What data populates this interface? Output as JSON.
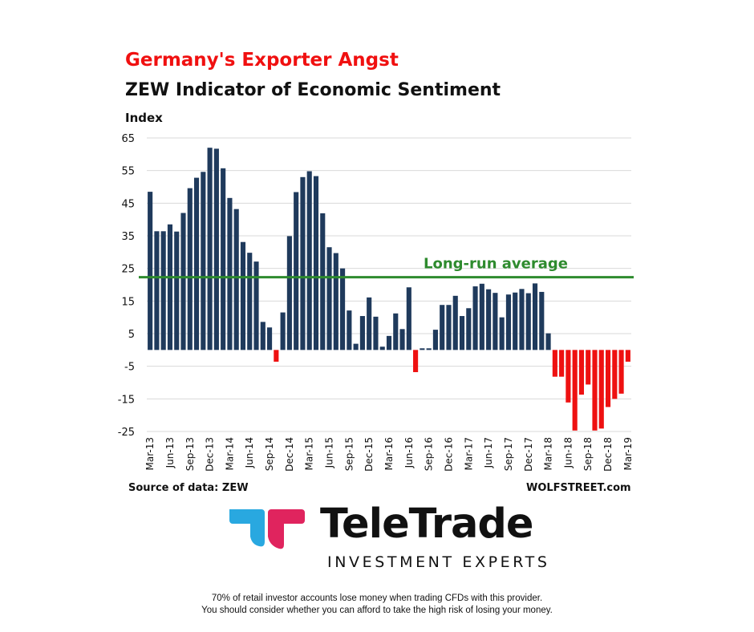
{
  "header": {
    "title": "Germany's Exporter Angst",
    "subtitle": "ZEW Indicator of Economic Sentiment",
    "ylabel": "Index"
  },
  "chart_data": {
    "type": "bar",
    "title": "Germany's Exporter Angst",
    "subtitle": "ZEW Indicator of Economic Sentiment",
    "ylabel": "Index",
    "xlabel": "",
    "ylim": [
      -25,
      65
    ],
    "yticks": [
      65,
      55,
      45,
      35,
      25,
      15,
      5,
      -5,
      -15,
      -25
    ],
    "grid": true,
    "categories": [
      "Mar-13",
      "Apr-13",
      "May-13",
      "Jun-13",
      "Jul-13",
      "Aug-13",
      "Sep-13",
      "Oct-13",
      "Nov-13",
      "Dec-13",
      "Jan-14",
      "Feb-14",
      "Mar-14",
      "Apr-14",
      "May-14",
      "Jun-14",
      "Jul-14",
      "Aug-14",
      "Sep-14",
      "Oct-14",
      "Nov-14",
      "Dec-14",
      "Jan-15",
      "Feb-15",
      "Mar-15",
      "Apr-15",
      "May-15",
      "Jun-15",
      "Jul-15",
      "Aug-15",
      "Sep-15",
      "Oct-15",
      "Nov-15",
      "Dec-15",
      "Jan-16",
      "Feb-16",
      "Mar-16",
      "Apr-16",
      "May-16",
      "Jun-16",
      "Jul-16",
      "Aug-16",
      "Sep-16",
      "Oct-16",
      "Nov-16",
      "Dec-16",
      "Jan-17",
      "Feb-17",
      "Mar-17",
      "Apr-17",
      "May-17",
      "Jun-17",
      "Jul-17",
      "Aug-17",
      "Sep-17",
      "Oct-17",
      "Nov-17",
      "Dec-17",
      "Jan-18",
      "Feb-18",
      "Mar-18",
      "Apr-18",
      "May-18",
      "Jun-18",
      "Jul-18",
      "Aug-18",
      "Sep-18",
      "Oct-18",
      "Nov-18",
      "Dec-18",
      "Jan-19",
      "Feb-19",
      "Mar-19"
    ],
    "values": [
      48.5,
      36.4,
      36.4,
      38.5,
      36.3,
      42.0,
      49.6,
      52.8,
      54.6,
      62.0,
      61.7,
      55.7,
      46.6,
      43.2,
      33.1,
      29.8,
      27.1,
      8.6,
      6.9,
      -3.6,
      11.5,
      34.9,
      48.4,
      53.0,
      54.8,
      53.3,
      41.9,
      31.5,
      29.7,
      25.0,
      12.1,
      1.9,
      10.4,
      16.1,
      10.2,
      1.0,
      4.3,
      11.2,
      6.4,
      19.2,
      -6.8,
      0.5,
      0.5,
      6.2,
      13.8,
      13.8,
      16.6,
      10.4,
      12.8,
      19.5,
      20.3,
      18.6,
      17.5,
      10.0,
      17.0,
      17.6,
      18.7,
      17.4,
      20.4,
      17.8,
      5.1,
      -8.2,
      -8.2,
      -16.1,
      -24.7,
      -13.7,
      -10.6,
      -24.7,
      -24.1,
      -17.5,
      -15.0,
      -13.4,
      -3.6
    ],
    "xtick_labels": [
      "Mar-13",
      "Jun-13",
      "Sep-13",
      "Dec-13",
      "Mar-14",
      "Jun-14",
      "Sep-14",
      "Dec-14",
      "Mar-15",
      "Jun-15",
      "Sep-15",
      "Dec-15",
      "Mar-16",
      "Jun-16",
      "Sep-16",
      "Dec-16",
      "Mar-17",
      "Jun-17",
      "Sep-17",
      "Dec-17",
      "Mar-18",
      "Jun-18",
      "Sep-18",
      "Dec-18",
      "Mar-19"
    ],
    "reference_line": {
      "label": "Long-run average",
      "value": 22.3,
      "color": "#2e8b2e"
    },
    "colors": {
      "positive": "#1f3a5c",
      "negative": "#ee1111",
      "grid": "#d9d9d9"
    },
    "source": "Source of data: ZEW",
    "credit": "WOLFSTREET.com"
  },
  "brand": {
    "name": "TeleTrade",
    "tagline": "INVESTMENT EXPERTS",
    "colors": {
      "left_mark": "#29a8e0",
      "right_mark": "#e0245e"
    }
  },
  "disclaimer": {
    "line1": "70% of retail investor accounts lose money when trading CFDs with this provider.",
    "line2": "You should consider whether you can afford to take the high risk of losing your money."
  }
}
